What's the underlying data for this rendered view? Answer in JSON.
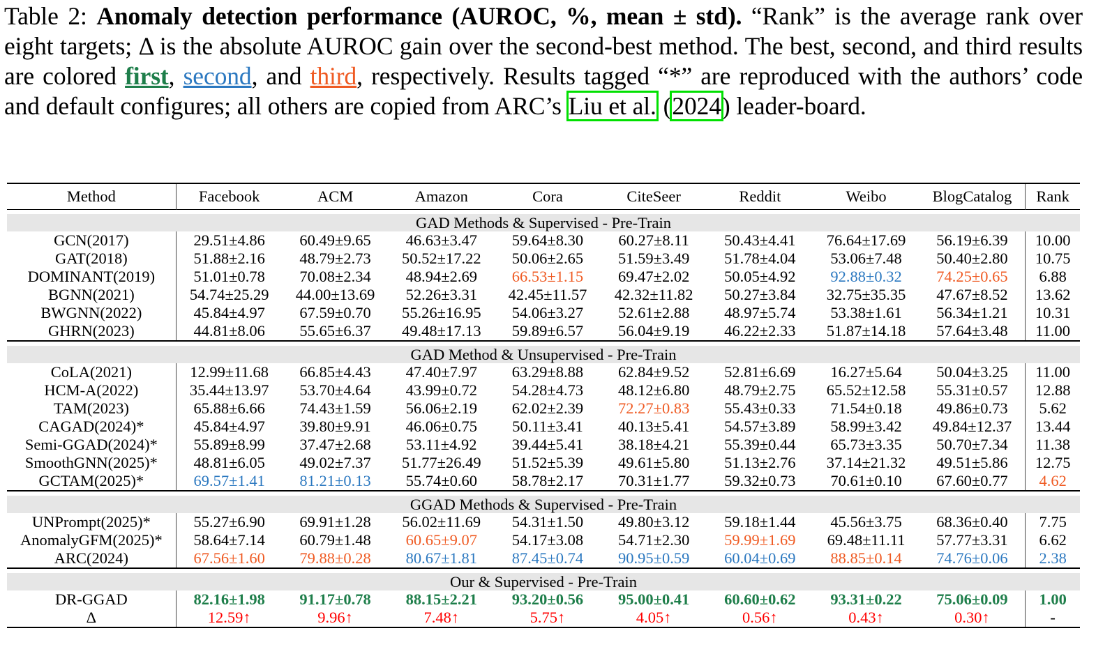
{
  "caption": {
    "label": "Table 2: ",
    "bold_title": "Anomaly detection performance (AUROC, %, mean ± std).",
    "text1": " “Rank” is the average rank over eight targets; Δ is the absolute AUROC gain over the second-best method. The best, second, and third results are colored ",
    "first": "first",
    "comma1": ", ",
    "second": "second",
    "and": ", and ",
    "third": "third",
    "text2": ", respectively. Results tagged “*” are reproduced with the authors’ code and default configures; all others are copied from ARC’s ",
    "cite_author": "Liu et al.",
    "paren_open": " (",
    "cite_year": "2024",
    "paren_close": ")",
    "text3": " leader-board."
  },
  "colors": {
    "first": "#1e7e4a",
    "second": "#2b78c0",
    "third": "#ef5a22",
    "delta": "#ff0000"
  },
  "table": {
    "headers": [
      "Method",
      "Facebook",
      "ACM",
      "Amazon",
      "Cora",
      "CiteSeer",
      "Reddit",
      "Weibo",
      "BlogCatalog",
      "Rank"
    ],
    "groups": [
      {
        "title": "GAD Methods & Supervised - Pre-Train",
        "rows": [
          {
            "method": "GCN(2017)",
            "cells": [
              "29.51±4.86",
              "60.49±9.65",
              "46.63±3.47",
              "59.64±8.30",
              "60.27±8.11",
              "50.43±4.41",
              "76.64±17.69",
              "56.19±6.39",
              "10.00"
            ],
            "marks": {}
          },
          {
            "method": "GAT(2018)",
            "cells": [
              "51.88±2.16",
              "48.79±2.73",
              "50.52±17.22",
              "50.06±2.65",
              "51.59±3.49",
              "51.78±4.04",
              "53.06±7.48",
              "50.40±2.80",
              "10.75"
            ],
            "marks": {}
          },
          {
            "method": "DOMINANT(2019)",
            "cells": [
              "51.01±0.78",
              "70.08±2.34",
              "48.94±2.69",
              "66.53±1.15",
              "69.47±2.02",
              "50.05±4.92",
              "92.88±0.32",
              "74.25±0.65",
              "6.88"
            ],
            "marks": {
              "3": "third",
              "6": "second",
              "7": "third"
            }
          },
          {
            "method": "BGNN(2021)",
            "cells": [
              "54.74±25.29",
              "44.00±13.69",
              "52.26±3.31",
              "42.45±11.57",
              "42.32±11.82",
              "50.27±3.84",
              "32.75±35.35",
              "47.67±8.52",
              "13.62"
            ],
            "marks": {}
          },
          {
            "method": "BWGNN(2022)",
            "cells": [
              "45.84±4.97",
              "67.59±0.70",
              "55.26±16.95",
              "54.06±3.27",
              "52.61±2.88",
              "48.97±5.74",
              "53.38±1.61",
              "56.34±1.21",
              "10.31"
            ],
            "marks": {}
          },
          {
            "method": "GHRN(2023)",
            "cells": [
              "44.81±8.06",
              "55.65±6.37",
              "49.48±17.13",
              "59.89±6.57",
              "56.04±9.19",
              "46.22±2.33",
              "51.87±14.18",
              "57.64±3.48",
              "11.00"
            ],
            "marks": {}
          }
        ]
      },
      {
        "title": "GAD Method & Unsupervised - Pre-Train",
        "rows": [
          {
            "method": "CoLA(2021)",
            "cells": [
              "12.99±11.68",
              "66.85±4.43",
              "47.40±7.97",
              "63.29±8.88",
              "62.84±9.52",
              "52.81±6.69",
              "16.27±5.64",
              "50.04±3.25",
              "11.00"
            ],
            "marks": {}
          },
          {
            "method": "HCM-A(2022)",
            "cells": [
              "35.44±13.97",
              "53.70±4.64",
              "43.99±0.72",
              "54.28±4.73",
              "48.12±6.80",
              "48.79±2.75",
              "65.52±12.58",
              "55.31±0.57",
              "12.88"
            ],
            "marks": {}
          },
          {
            "method": "TAM(2023)",
            "cells": [
              "65.88±6.66",
              "74.43±1.59",
              "56.06±2.19",
              "62.02±2.39",
              "72.27±0.83",
              "55.43±0.33",
              "71.54±0.18",
              "49.86±0.73",
              "5.62"
            ],
            "marks": {
              "4": "third"
            }
          },
          {
            "method": "CAGAD(2024)*",
            "cells": [
              "45.84±4.97",
              "39.80±9.91",
              "46.06±0.75",
              "50.11±3.41",
              "40.13±5.41",
              "54.57±3.89",
              "58.99±3.42",
              "49.84±12.37",
              "13.44"
            ],
            "marks": {}
          },
          {
            "method": "Semi-GGAD(2024)*",
            "cells": [
              "55.89±8.99",
              "37.47±2.68",
              "53.11±4.92",
              "39.44±5.41",
              "38.18±4.21",
              "55.39±0.44",
              "65.73±3.35",
              "50.70±7.34",
              "11.38"
            ],
            "marks": {}
          },
          {
            "method": "SmoothGNN(2025)*",
            "cells": [
              "48.81±6.05",
              "49.02±7.37",
              "51.77±26.49",
              "51.52±5.39",
              "49.61±5.80",
              "51.13±2.76",
              "37.14±21.32",
              "49.51±5.86",
              "12.75"
            ],
            "marks": {}
          },
          {
            "method": "GCTAM(2025)*",
            "cells": [
              "69.57±1.41",
              "81.21±0.13",
              "55.74±0.60",
              "58.78±2.17",
              "70.31±1.77",
              "59.32±0.73",
              "70.61±0.10",
              "67.60±0.77",
              "4.62"
            ],
            "marks": {
              "0": "second",
              "1": "second",
              "8": "third"
            }
          }
        ]
      },
      {
        "title": "GGAD Methods & Supervised - Pre-Train",
        "rows": [
          {
            "method": "UNPrompt(2025)*",
            "cells": [
              "55.27±6.90",
              "69.91±1.28",
              "56.02±11.69",
              "54.31±1.50",
              "49.80±3.12",
              "59.18±1.44",
              "45.56±3.75",
              "68.36±0.40",
              "7.75"
            ],
            "marks": {}
          },
          {
            "method": "AnomalyGFM(2025)*",
            "cells": [
              "58.64±7.14",
              "60.79±1.48",
              "60.65±9.07",
              "54.17±3.08",
              "54.71±2.30",
              "59.99±1.69",
              "69.48±11.11",
              "57.77±3.31",
              "6.62"
            ],
            "marks": {
              "2": "third",
              "5": "third"
            }
          },
          {
            "method": "ARC(2024)",
            "cells": [
              "67.56±1.60",
              "79.88±0.28",
              "80.67±1.81",
              "87.45±0.74",
              "90.95±0.59",
              "60.04±0.69",
              "88.85±0.14",
              "74.76±0.06",
              "2.38"
            ],
            "marks": {
              "0": "third",
              "1": "third",
              "2": "second",
              "3": "second",
              "4": "second",
              "5": "second",
              "6": "third",
              "7": "second",
              "8": "second"
            }
          }
        ]
      },
      {
        "title": "Our & Supervised - Pre-Train",
        "rows": [
          {
            "method": "DR-GGAD",
            "cells": [
              "82.16±1.98",
              "91.17±0.78",
              "88.15±2.21",
              "93.20±0.56",
              "95.00±0.41",
              "60.60±0.62",
              "93.31±0.22",
              "75.06±0.09",
              "1.00"
            ],
            "marks": {
              "0": "first",
              "1": "first",
              "2": "first",
              "3": "first",
              "4": "first",
              "5": "first",
              "6": "first",
              "7": "first",
              "8": "first"
            }
          },
          {
            "method": "Δ",
            "cells": [
              "12.59↑",
              "9.96↑",
              "7.48↑",
              "5.75↑",
              "4.05↑",
              "0.56↑",
              "0.43↑",
              "0.30↑",
              "-"
            ],
            "marks": {
              "0": "delta",
              "1": "delta",
              "2": "delta",
              "3": "delta",
              "4": "delta",
              "5": "delta",
              "6": "delta",
              "7": "delta"
            }
          }
        ]
      }
    ]
  }
}
